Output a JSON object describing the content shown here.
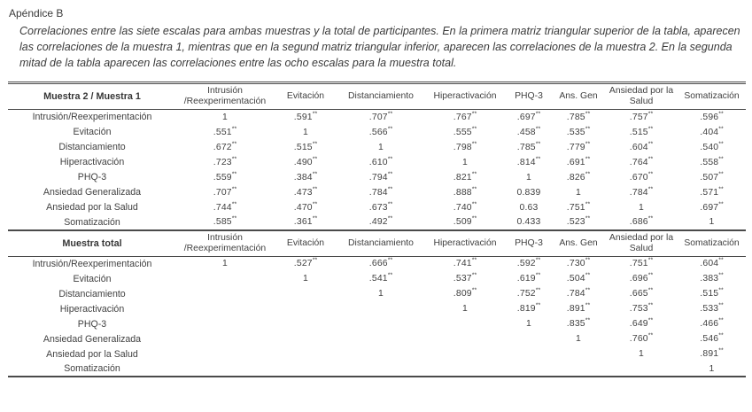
{
  "page": {
    "title": "Apéndice B",
    "caption": "Correlaciones entre las siete escalas para ambas muestras y la total de participantes. En la primera matriz triangular superior de la tabla, aparecen las correlaciones de la muestra 1, mientras que en la segund matriz triangular inferior, aparecen las correlaciones de la muestra 2. En la segunda mitad de la tabla aparecen las correlaciones entre las ocho escalas para la muestra total."
  },
  "columns": [
    "Intrusión /Reexperimentación",
    "Evitación",
    "Distanciamiento",
    "Hiperactivación",
    "PHQ-3",
    "Ans. Gen",
    "Ansiedad por la Salud",
    "Somatización"
  ],
  "table1": {
    "corner_label": "Muestra 2 / Muestra 1",
    "rows": [
      {
        "label": "Intrusión/Reexperimentación",
        "values": [
          "1",
          ".591**",
          ".707**",
          ".767**",
          ".697**",
          ".785**",
          ".757**",
          ".596**"
        ]
      },
      {
        "label": "Evitación",
        "values": [
          ".551**",
          "1",
          ".566**",
          ".555**",
          ".458**",
          ".535**",
          ".515**",
          ".404**"
        ]
      },
      {
        "label": "Distanciamiento",
        "values": [
          ".672**",
          ".515**",
          "1",
          ".798**",
          ".785**",
          ".779**",
          ".604**",
          ".540**"
        ]
      },
      {
        "label": "Hiperactivación",
        "values": [
          ".723**",
          ".490**",
          ".610**",
          "1",
          ".814**",
          ".691**",
          ".764**",
          ".558**"
        ]
      },
      {
        "label": "PHQ-3",
        "values": [
          ".559**",
          ".384**",
          ".794**",
          ".821**",
          "1",
          ".826**",
          ".670**",
          ".507**"
        ]
      },
      {
        "label": "Ansiedad Generalizada",
        "values": [
          ".707**",
          ".473**",
          ".784**",
          ".888**",
          "0.839",
          "1",
          ".784**",
          ".571**"
        ]
      },
      {
        "label": "Ansiedad por la Salud",
        "values": [
          ".744**",
          ".470**",
          ".673**",
          ".740**",
          "0.63",
          ".751**",
          "1",
          ".697**"
        ]
      },
      {
        "label": "Somatización",
        "values": [
          ".585**",
          ".361**",
          ".492**",
          ".509**",
          "0.433",
          ".523**",
          ".686**",
          "1"
        ]
      }
    ]
  },
  "table2": {
    "corner_label": "Muestra total",
    "rows": [
      {
        "label": "Intrusión/Reexperimentación",
        "values": [
          "1",
          ".527**",
          ".666**",
          ".741**",
          ".592**",
          ".730**",
          ".751**",
          ".604**"
        ]
      },
      {
        "label": "Evitación",
        "values": [
          "",
          "1",
          ".541**",
          ".537**",
          ".619**",
          ".504**",
          ".696**",
          ".383**"
        ]
      },
      {
        "label": "Distanciamiento",
        "values": [
          "",
          "",
          "1",
          ".809**",
          ".752**",
          ".784**",
          ".665**",
          ".515**"
        ]
      },
      {
        "label": "Hiperactivación",
        "values": [
          "",
          "",
          "",
          "1",
          ".819**",
          ".891**",
          ".753**",
          ".533**"
        ]
      },
      {
        "label": "PHQ-3",
        "values": [
          "",
          "",
          "",
          "",
          "1",
          ".835**",
          ".649**",
          ".466**"
        ]
      },
      {
        "label": "Ansiedad Generalizada",
        "values": [
          "",
          "",
          "",
          "",
          "",
          "1",
          ".760**",
          ".546**"
        ]
      },
      {
        "label": "Ansiedad por la Salud",
        "values": [
          "",
          "",
          "",
          "",
          "",
          "",
          "1",
          ".891**"
        ]
      },
      {
        "label": "Somatización",
        "values": [
          "",
          "",
          "",
          "",
          "",
          "",
          "",
          "1"
        ]
      }
    ]
  }
}
